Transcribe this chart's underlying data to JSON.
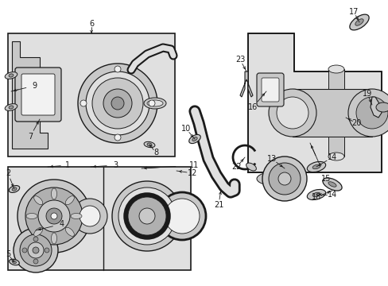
{
  "bg_color": "#ffffff",
  "line_color": "#1a1a1a",
  "shade1": "#e0e0e0",
  "shade2": "#c8c8c8",
  "shade3": "#b0b0b0",
  "shade4": "#989898",
  "figw": 4.89,
  "figh": 3.6,
  "dpi": 100
}
